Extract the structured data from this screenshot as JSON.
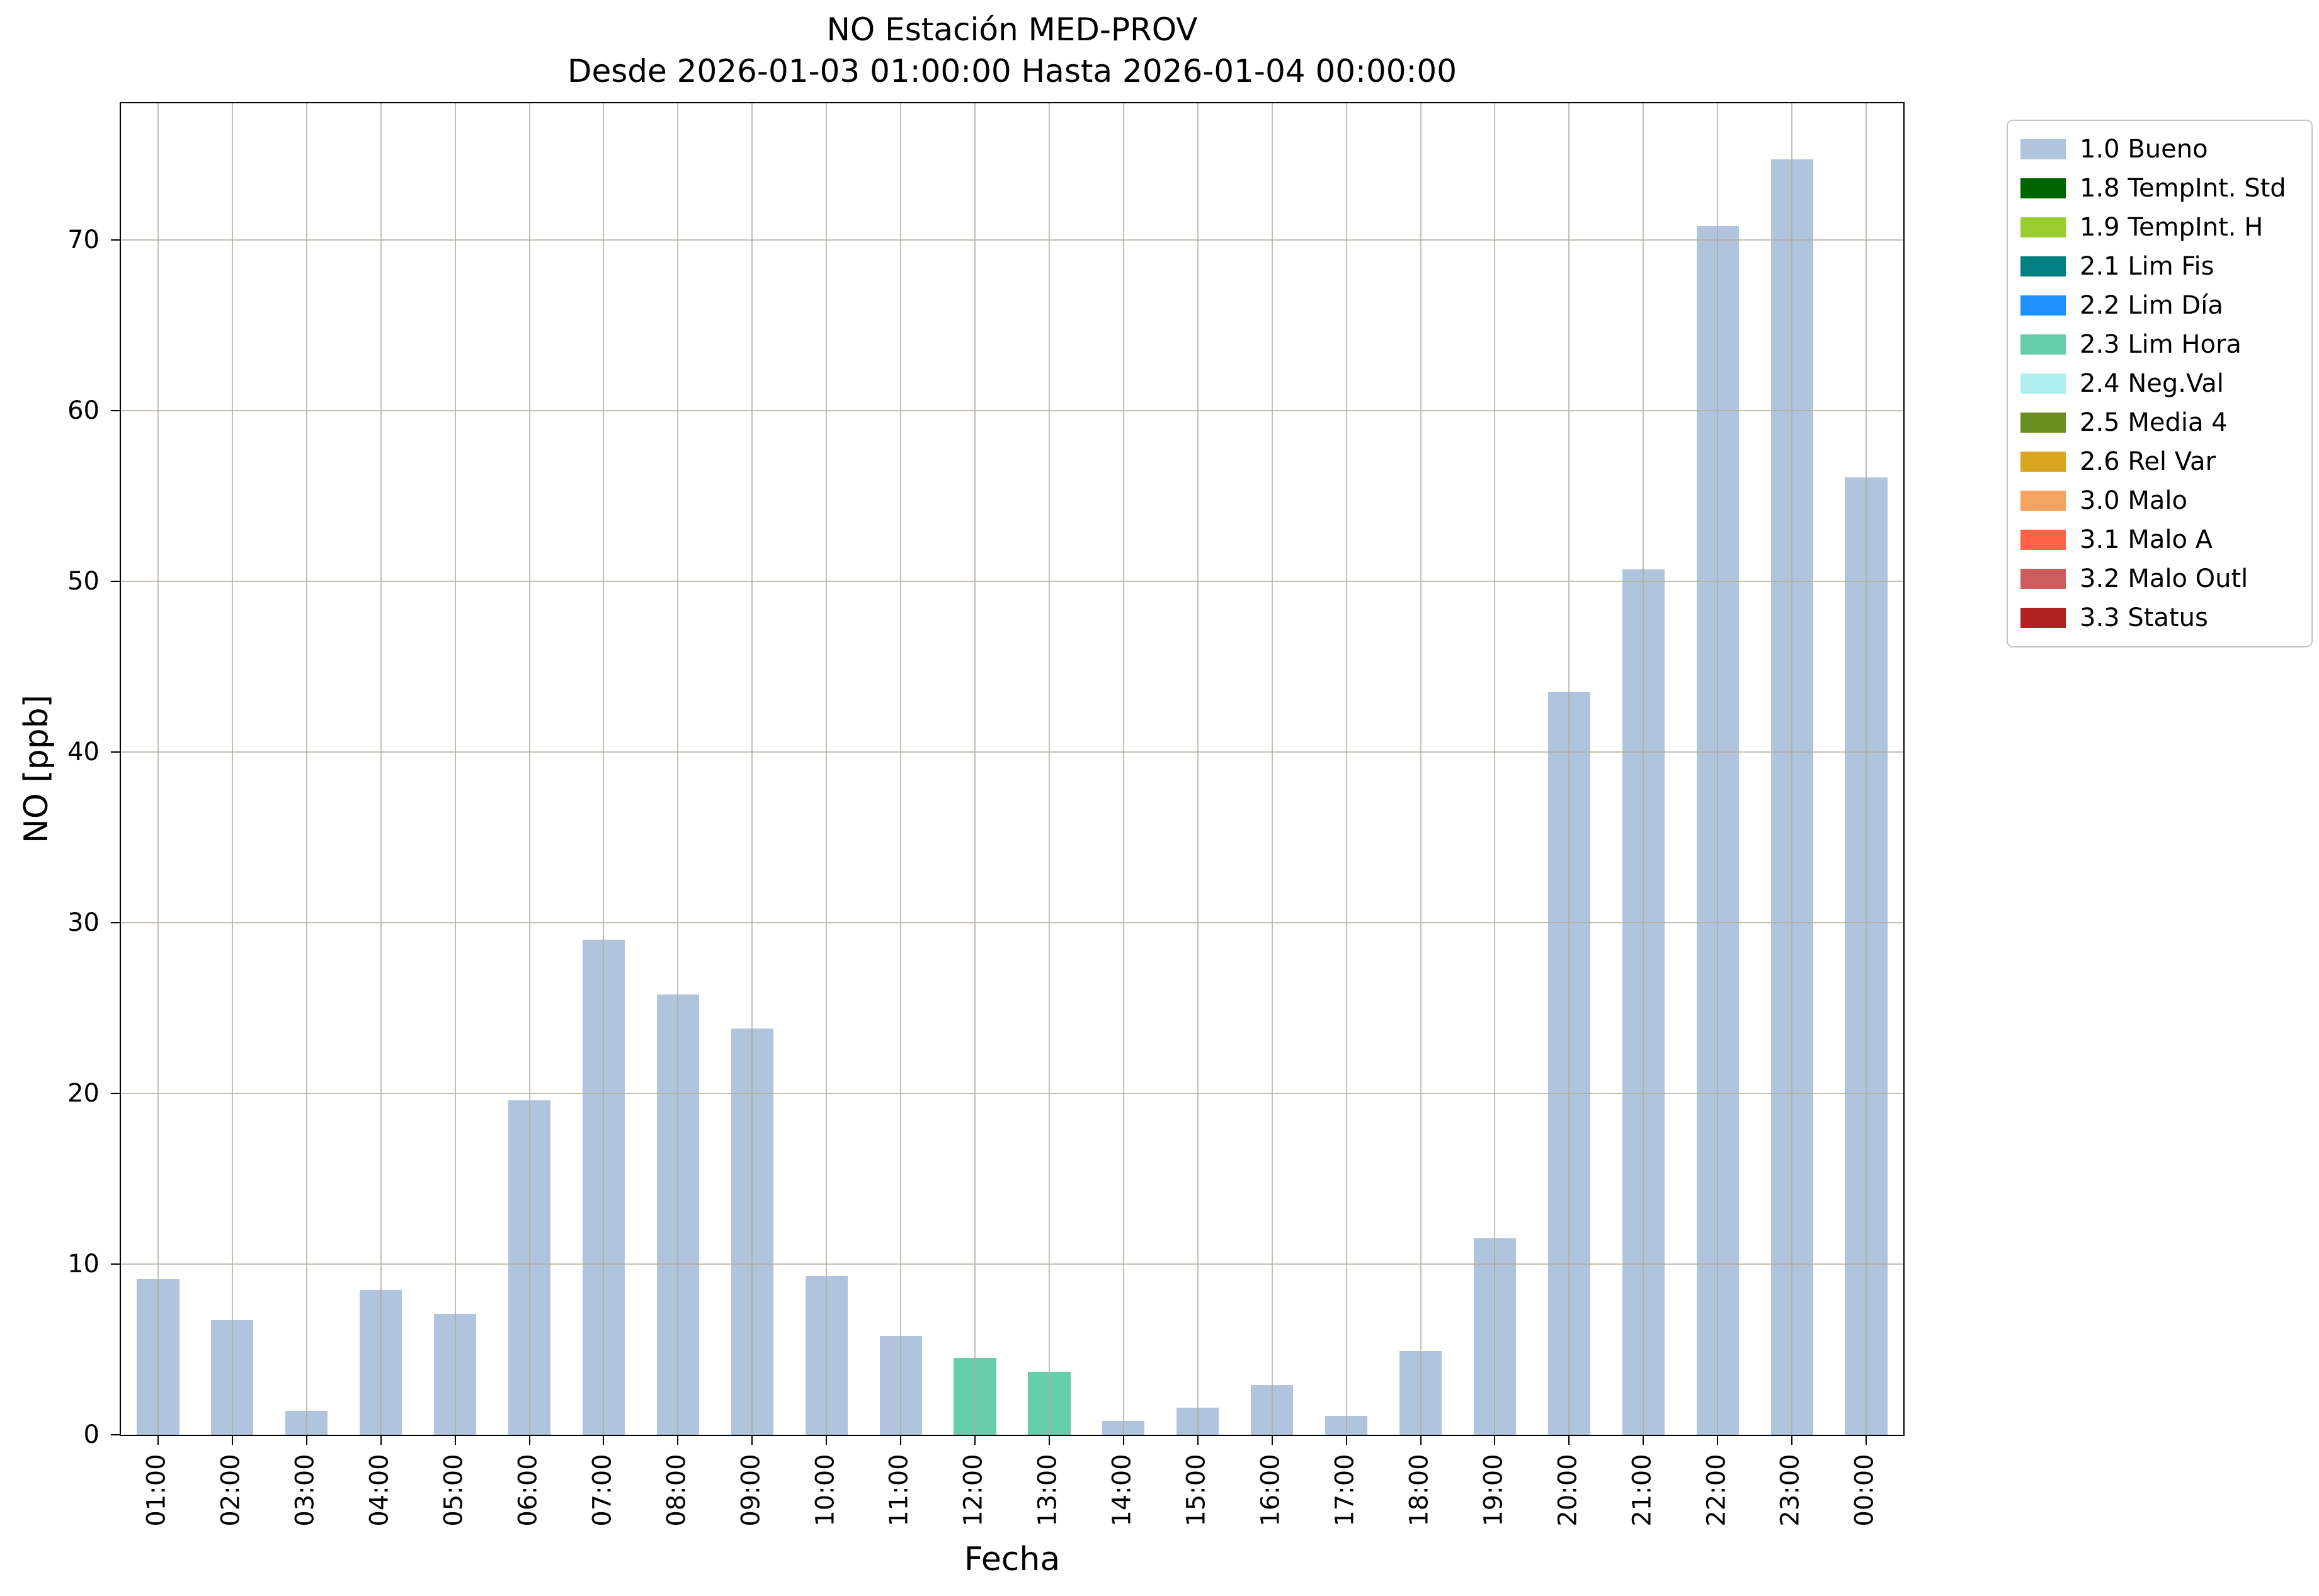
{
  "chart_data": {
    "type": "bar",
    "title": "NO Estación MED-PROV",
    "subtitle": "Desde 2026-01-03 01:00:00 Hasta 2026-01-04 00:00:00",
    "xlabel": "Fecha",
    "ylabel": "NO [ppb]",
    "ylim": [
      0,
      78
    ],
    "yticks": [
      0,
      10,
      20,
      30,
      40,
      50,
      60,
      70
    ],
    "grid": true,
    "legend_position": "outside-top-right",
    "categories": [
      "01:00",
      "02:00",
      "03:00",
      "04:00",
      "05:00",
      "06:00",
      "07:00",
      "08:00",
      "09:00",
      "10:00",
      "11:00",
      "12:00",
      "13:00",
      "14:00",
      "15:00",
      "16:00",
      "17:00",
      "18:00",
      "19:00",
      "20:00",
      "21:00",
      "22:00",
      "23:00",
      "00:00"
    ],
    "values": [
      9.1,
      6.7,
      1.4,
      8.5,
      7.1,
      19.6,
      29.0,
      25.8,
      23.8,
      9.3,
      5.8,
      4.5,
      3.7,
      0.8,
      1.6,
      2.9,
      1.1,
      4.9,
      11.5,
      43.5,
      50.7,
      70.8,
      74.7,
      56.1
    ],
    "bar_status": [
      "1.0 Bueno",
      "1.0 Bueno",
      "1.0 Bueno",
      "1.0 Bueno",
      "1.0 Bueno",
      "1.0 Bueno",
      "1.0 Bueno",
      "1.0 Bueno",
      "1.0 Bueno",
      "1.0 Bueno",
      "1.0 Bueno",
      "2.3 Lim Hora",
      "2.3 Lim Hora",
      "1.0 Bueno",
      "1.0 Bueno",
      "1.0 Bueno",
      "1.0 Bueno",
      "1.0 Bueno",
      "1.0 Bueno",
      "1.0 Bueno",
      "1.0 Bueno",
      "1.0 Bueno",
      "1.0 Bueno",
      "1.0 Bueno"
    ],
    "legend": {
      "items": [
        {
          "label": "1.0 Bueno",
          "color": "#b0c4de"
        },
        {
          "label": "1.8 TempInt. Std",
          "color": "#006400"
        },
        {
          "label": "1.9 TempInt. H",
          "color": "#9acd32"
        },
        {
          "label": "2.1 Lim Fis",
          "color": "#008080"
        },
        {
          "label": "2.2 Lim Día",
          "color": "#1e90ff"
        },
        {
          "label": "2.3 Lim Hora",
          "color": "#66cdaa"
        },
        {
          "label": "2.4 Neg.Val",
          "color": "#afeeee"
        },
        {
          "label": "2.5 Media 4",
          "color": "#6b8e23"
        },
        {
          "label": "2.6 Rel Var",
          "color": "#daa520"
        },
        {
          "label": "3.0 Malo",
          "color": "#f4a460"
        },
        {
          "label": "3.1 Malo A",
          "color": "#ff6347"
        },
        {
          "label": "3.2 Malo Outl",
          "color": "#cd5c5c"
        },
        {
          "label": "3.3 Status",
          "color": "#b22222"
        }
      ]
    }
  }
}
